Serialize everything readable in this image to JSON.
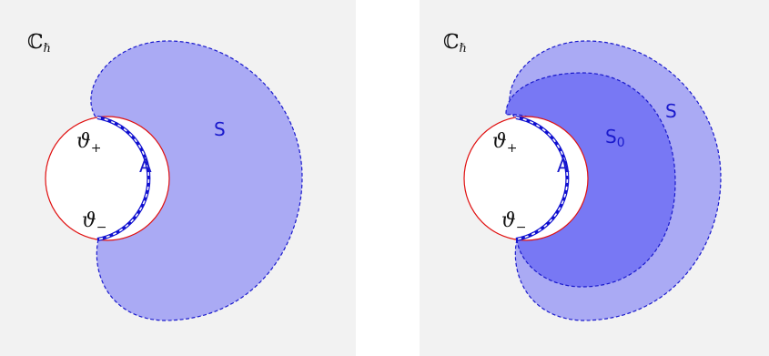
{
  "colors": {
    "panel_bg": "#f2f2f2",
    "region_light": "#aaaaf4",
    "region_dark": "#7878f4",
    "boundary_dashed": "#1a1acc",
    "arc_red": "#e01010",
    "arc_thick_blue": "#1010d0",
    "arc_thick_dash": "#ffffff",
    "label_blue": "#1a1acc",
    "label_dark": "#111111"
  },
  "left": {
    "plane_label": "ℂℏ",
    "plane_main": "ℂ",
    "plane_sub": "ℏ",
    "theta_plus": "ϑ+",
    "theta_plus_base": "ϑ",
    "theta_plus_sub": "+",
    "theta_minus": "ϑ−",
    "theta_minus_base": "ϑ",
    "theta_minus_sub": "−",
    "region_A": "A",
    "region_S": "S"
  },
  "right": {
    "plane_label": "ℂℏ",
    "plane_main": "ℂ",
    "plane_sub": "ℏ",
    "theta_plus": "ϑ+",
    "theta_plus_base": "ϑ",
    "theta_plus_sub": "+",
    "theta_minus": "ϑ−",
    "theta_minus_base": "ϑ",
    "theta_minus_sub": "−",
    "region_A": "A",
    "region_S": "S",
    "region_S0": "S0",
    "region_S0_base": "S",
    "region_S0_sub": "0"
  }
}
